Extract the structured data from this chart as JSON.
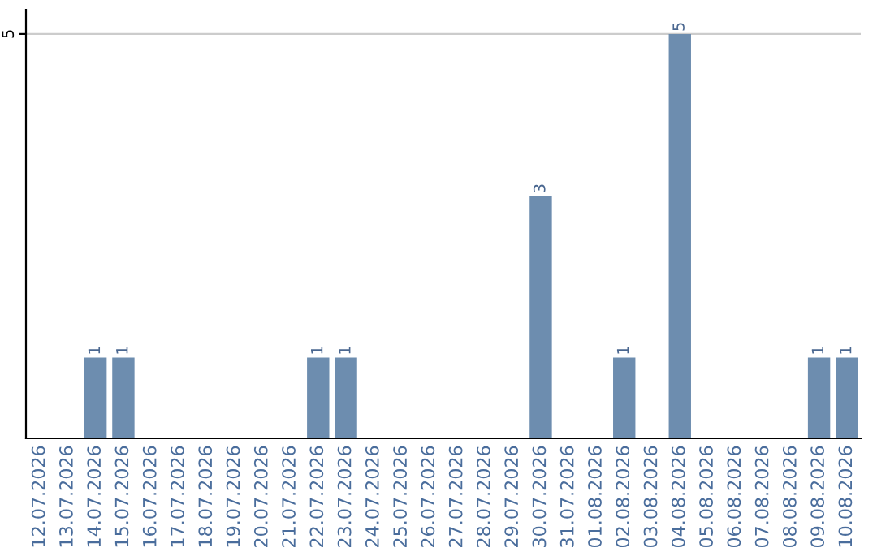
{
  "chart_data": {
    "type": "bar",
    "categories": [
      "12.07.2026",
      "13.07.2026",
      "14.07.2026",
      "15.07.2026",
      "16.07.2026",
      "17.07.2026",
      "18.07.2026",
      "19.07.2026",
      "20.07.2026",
      "21.07.2026",
      "22.07.2026",
      "23.07.2026",
      "24.07.2026",
      "25.07.2026",
      "26.07.2026",
      "27.07.2026",
      "28.07.2026",
      "29.07.2026",
      "30.07.2026",
      "31.07.2026",
      "01.08.2026",
      "02.08.2026",
      "03.08.2026",
      "04.08.2026",
      "05.08.2026",
      "06.08.2026",
      "07.08.2026",
      "08.08.2026",
      "09.08.2026",
      "10.08.2026"
    ],
    "values": [
      0,
      0,
      1,
      1,
      0,
      0,
      0,
      0,
      0,
      0,
      1,
      1,
      0,
      0,
      0,
      0,
      0,
      0,
      3,
      0,
      0,
      1,
      0,
      5,
      0,
      0,
      0,
      0,
      1,
      1
    ],
    "value_labels": [
      null,
      null,
      "1",
      "1",
      null,
      null,
      null,
      null,
      null,
      null,
      "1",
      "1",
      null,
      null,
      null,
      null,
      null,
      null,
      "3",
      null,
      null,
      "1",
      null,
      "5",
      null,
      null,
      null,
      null,
      "1",
      "1"
    ],
    "color": "#6d8daf",
    "ylim": [
      0,
      5.3
    ],
    "yticks": [
      5
    ],
    "grid": "y"
  }
}
